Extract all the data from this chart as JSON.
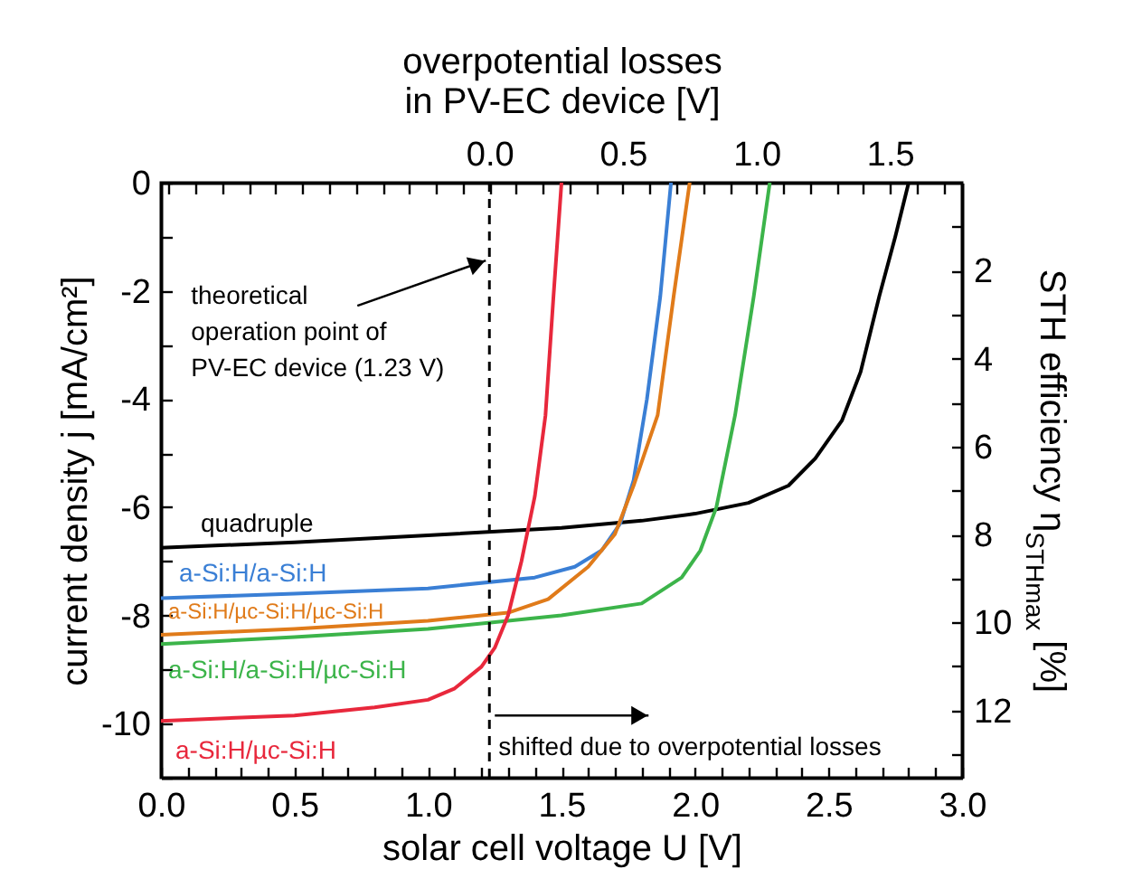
{
  "chart_data": {
    "type": "line",
    "xlabel": "solar cell voltage U [V]",
    "ylabel": "current density j [mA/cm²]",
    "x2label": "overpotential losses\nin PV-EC device [V]",
    "y2label": "STH efficiency η$_{STHmax}$ [%]",
    "xlim": [
      0,
      3
    ],
    "xticks": [
      {
        "value": 0,
        "label": "0.0"
      },
      {
        "value": 0.1,
        "label": null
      },
      {
        "value": 0.2,
        "label": null
      },
      {
        "value": 0.3,
        "label": null
      },
      {
        "value": 0.4,
        "label": null
      },
      {
        "value": 0.5,
        "label": "0.5"
      },
      {
        "value": 0.6,
        "label": null
      },
      {
        "value": 0.7,
        "label": null
      },
      {
        "value": 0.8,
        "label": null
      },
      {
        "value": 0.9,
        "label": null
      },
      {
        "value": 1,
        "label": "1.0"
      },
      {
        "value": 1.1,
        "label": null
      },
      {
        "value": 1.2,
        "label": null
      },
      {
        "value": 1.3,
        "label": null
      },
      {
        "value": 1.4,
        "label": null
      },
      {
        "value": 1.5,
        "label": "1.5"
      },
      {
        "value": 1.6,
        "label": null
      },
      {
        "value": 1.7,
        "label": null
      },
      {
        "value": 1.8,
        "label": null
      },
      {
        "value": 1.9,
        "label": null
      },
      {
        "value": 2,
        "label": "2.0"
      },
      {
        "value": 2.1,
        "label": null
      },
      {
        "value": 2.2,
        "label": null
      },
      {
        "value": 2.3,
        "label": null
      },
      {
        "value": 2.4,
        "label": null
      },
      {
        "value": 2.5,
        "label": "2.5"
      },
      {
        "value": 2.6,
        "label": null
      },
      {
        "value": 2.7,
        "label": null
      },
      {
        "value": 2.8,
        "label": null
      },
      {
        "value": 2.9,
        "label": null
      },
      {
        "value": 3,
        "label": "3.0"
      }
    ],
    "x2lim": [
      -1.23,
      1.77
    ],
    "x2ticks": [
      {
        "value": -1.2,
        "label": null
      },
      {
        "value": -1.1,
        "label": null
      },
      {
        "value": -1,
        "label": null
      },
      {
        "value": -0.9,
        "label": null
      },
      {
        "value": -0.8,
        "label": null
      },
      {
        "value": -0.7,
        "label": null
      },
      {
        "value": -0.6,
        "label": null
      },
      {
        "value": -0.5,
        "label": null
      },
      {
        "value": -0.4,
        "label": null
      },
      {
        "value": -0.3,
        "label": null
      },
      {
        "value": -0.2,
        "label": null
      },
      {
        "value": -0.1,
        "label": null
      },
      {
        "value": 0,
        "label": "0.0"
      },
      {
        "value": 0.1,
        "label": null
      },
      {
        "value": 0.2,
        "label": null
      },
      {
        "value": 0.3,
        "label": null
      },
      {
        "value": 0.4,
        "label": null
      },
      {
        "value": 0.5,
        "label": "0.5"
      },
      {
        "value": 0.6,
        "label": null
      },
      {
        "value": 0.7,
        "label": null
      },
      {
        "value": 0.8,
        "label": null
      },
      {
        "value": 0.9,
        "label": null
      },
      {
        "value": 1,
        "label": "1.0"
      },
      {
        "value": 1.1,
        "label": null
      },
      {
        "value": 1.2,
        "label": null
      },
      {
        "value": 1.3,
        "label": null
      },
      {
        "value": 1.4,
        "label": null
      },
      {
        "value": 1.5,
        "label": "1.5"
      },
      {
        "value": 1.6,
        "label": null
      },
      {
        "value": 1.7,
        "label": null
      }
    ],
    "ylim": [
      -11,
      0
    ],
    "yticks": [
      {
        "value": -11,
        "label": null
      },
      -10,
      {
        "value": -9,
        "label": null
      },
      -8,
      {
        "value": -7,
        "label": null
      },
      -6,
      {
        "value": -5,
        "label": null
      },
      -4,
      {
        "value": -3,
        "label": null
      },
      -2,
      {
        "value": -1,
        "label": null
      },
      0
    ],
    "y2lim": [
      13.53,
      0
    ],
    "y2ticks": [
      {
        "value": 1,
        "label": null
      },
      2,
      {
        "value": 3,
        "label": null
      },
      4,
      {
        "value": 5,
        "label": null
      },
      6,
      {
        "value": 7,
        "label": null
      },
      8,
      {
        "value": 9,
        "label": null
      },
      10,
      {
        "value": 11,
        "label": null
      },
      12,
      {
        "value": 13,
        "label": null
      }
    ],
    "series": [
      {
        "name": "quadruple",
        "color": "#000000",
        "x": [
          0,
          0.5,
          1.0,
          1.5,
          1.8,
          2.0,
          2.2,
          2.35,
          2.45,
          2.55,
          2.62,
          2.69,
          2.75,
          2.8
        ],
        "values": [
          -6.75,
          -6.65,
          -6.52,
          -6.38,
          -6.25,
          -6.12,
          -5.92,
          -5.6,
          -5.1,
          -4.4,
          -3.5,
          -2.1,
          -1.0,
          0
        ]
      },
      {
        "name": "a-Si:H/a-Si:H",
        "color": "#3a7fd5",
        "x": [
          0,
          0.5,
          1.0,
          1.4,
          1.55,
          1.65,
          1.72,
          1.77,
          1.82,
          1.87,
          1.91
        ],
        "values": [
          -7.68,
          -7.6,
          -7.5,
          -7.3,
          -7.1,
          -6.8,
          -6.3,
          -5.5,
          -4.0,
          -2.1,
          0
        ]
      },
      {
        "name": "a-Si:H/µc-Si:H/µc-Si:H",
        "color": "#e07b1a",
        "x": [
          0,
          0.5,
          1.0,
          1.3,
          1.45,
          1.6,
          1.7,
          1.77,
          1.86,
          1.92,
          1.98
        ],
        "values": [
          -8.36,
          -8.25,
          -8.1,
          -7.95,
          -7.7,
          -7.1,
          -6.5,
          -5.6,
          -4.3,
          -2.1,
          0
        ]
      },
      {
        "name": "a-Si:H/a-Si:H/µc-Si:H",
        "color": "#3cb44a",
        "x": [
          0,
          0.5,
          1.0,
          1.5,
          1.8,
          1.95,
          2.02,
          2.08,
          2.15,
          2.22,
          2.28
        ],
        "values": [
          -8.53,
          -8.4,
          -8.25,
          -8.0,
          -7.78,
          -7.3,
          -6.8,
          -6.0,
          -4.3,
          -2.1,
          0
        ]
      },
      {
        "name": "a-Si:H/µc-Si:H",
        "color": "#e8283c",
        "x": [
          0,
          0.5,
          0.8,
          1.0,
          1.1,
          1.2,
          1.25,
          1.3,
          1.35,
          1.4,
          1.44,
          1.47,
          1.5
        ],
        "values": [
          -9.95,
          -9.85,
          -9.7,
          -9.56,
          -9.35,
          -8.95,
          -8.6,
          -8.0,
          -7.0,
          -5.8,
          -4.3,
          -2.1,
          0
        ]
      }
    ],
    "ref_lines": [
      {
        "axis": "x",
        "value": 1.23,
        "color": "#000000",
        "line_style": "dashed"
      }
    ],
    "annotations": [
      {
        "text": "theoretical\noperation point of\nPV-EC device (1.23 V)",
        "x": 1.23,
        "y": -1.44
      },
      {
        "text": "shifted due to overpotential losses",
        "x": 1.23,
        "y": -9.85
      }
    ],
    "legend": false,
    "grid": false
  }
}
